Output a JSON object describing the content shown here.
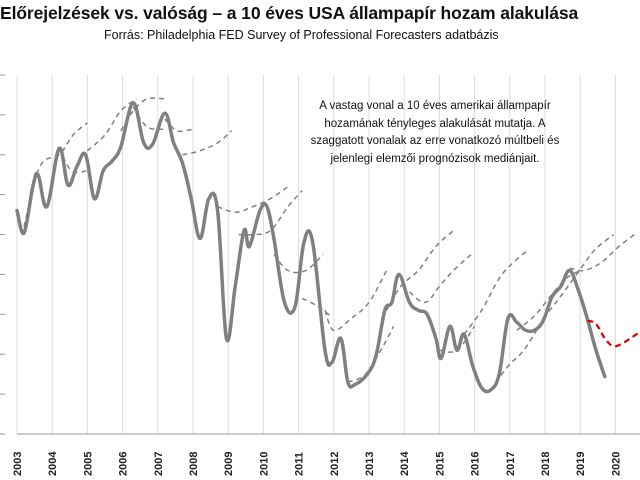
{
  "chart_data": {
    "type": "line",
    "title": "Előrejelzések vs. valóság – a 10 éves USA állampapír hozam alakulása",
    "subtitle": "Forrás: Philadelphia FED Survey of Professional Forecasters adatbázis",
    "annotation": "A vastag vonal a 10 éves amerikai állampapír hozamának tényleges alakulását mutatja. A szaggatott vonalak az erre vonatkozó múltbeli és jelenlegi elemzői prognózisok mediánjait.",
    "xlabel": "",
    "ylabel": "",
    "xlim": [
      2003,
      2020.7
    ],
    "ylim": [
      1.0,
      5.5
    ],
    "y_ticks": [
      1.0,
      1.5,
      2.0,
      2.5,
      3.0,
      3.5,
      4.0,
      4.5,
      5.0,
      5.5
    ],
    "x_ticks": [
      "2003",
      "2004",
      "2005",
      "2006",
      "2007",
      "2008",
      "2009",
      "2010",
      "2011",
      "2012",
      "2013",
      "2014",
      "2015",
      "2016",
      "2017",
      "2018",
      "2019",
      "2020"
    ],
    "grid": "vertical",
    "series": [
      {
        "kind": "actual",
        "color": "#808080",
        "style": "solid-thick",
        "points": [
          [
            2003.0,
            3.8
          ],
          [
            2003.2,
            3.52
          ],
          [
            2003.45,
            4.1
          ],
          [
            2003.6,
            4.25
          ],
          [
            2003.85,
            3.85
          ],
          [
            2004.2,
            4.58
          ],
          [
            2004.45,
            4.12
          ],
          [
            2004.7,
            4.35
          ],
          [
            2004.95,
            4.5
          ],
          [
            2005.2,
            3.95
          ],
          [
            2005.45,
            4.3
          ],
          [
            2005.7,
            4.42
          ],
          [
            2005.95,
            4.6
          ],
          [
            2006.3,
            5.15
          ],
          [
            2006.6,
            4.65
          ],
          [
            2006.85,
            4.63
          ],
          [
            2007.2,
            5.02
          ],
          [
            2007.45,
            4.65
          ],
          [
            2007.7,
            4.4
          ],
          [
            2007.95,
            3.95
          ],
          [
            2008.2,
            3.45
          ],
          [
            2008.45,
            3.95
          ],
          [
            2008.7,
            3.8
          ],
          [
            2008.95,
            2.2
          ],
          [
            2009.2,
            2.85
          ],
          [
            2009.45,
            3.55
          ],
          [
            2009.6,
            3.35
          ],
          [
            2009.9,
            3.8
          ],
          [
            2010.1,
            3.85
          ],
          [
            2010.3,
            3.45
          ],
          [
            2010.6,
            2.65
          ],
          [
            2010.9,
            2.6
          ],
          [
            2011.15,
            3.4
          ],
          [
            2011.4,
            3.4
          ],
          [
            2011.75,
            2.05
          ],
          [
            2011.95,
            1.9
          ],
          [
            2012.2,
            2.2
          ],
          [
            2012.4,
            1.65
          ],
          [
            2012.6,
            1.62
          ],
          [
            2012.95,
            1.75
          ],
          [
            2013.2,
            1.98
          ],
          [
            2013.45,
            2.55
          ],
          [
            2013.65,
            2.65
          ],
          [
            2013.85,
            3.0
          ],
          [
            2014.15,
            2.65
          ],
          [
            2014.4,
            2.55
          ],
          [
            2014.65,
            2.5
          ],
          [
            2014.9,
            2.2
          ],
          [
            2015.05,
            1.95
          ],
          [
            2015.3,
            2.35
          ],
          [
            2015.5,
            2.05
          ],
          [
            2015.7,
            2.25
          ],
          [
            2015.95,
            1.85
          ],
          [
            2016.2,
            1.58
          ],
          [
            2016.45,
            1.55
          ],
          [
            2016.7,
            1.75
          ],
          [
            2016.95,
            2.45
          ],
          [
            2017.2,
            2.4
          ],
          [
            2017.45,
            2.3
          ],
          [
            2017.7,
            2.3
          ],
          [
            2017.95,
            2.42
          ],
          [
            2018.2,
            2.72
          ],
          [
            2018.45,
            2.85
          ],
          [
            2018.7,
            3.05
          ],
          [
            2018.95,
            2.8
          ],
          [
            2019.2,
            2.45
          ],
          [
            2019.45,
            2.05
          ],
          [
            2019.7,
            1.72
          ]
        ]
      },
      {
        "kind": "forecast",
        "color": "#808080",
        "style": "dashed",
        "segments": [
          [
            [
              2003.2,
              3.6
            ],
            [
              2003.65,
              4.35
            ],
            [
              2004.2,
              4.5
            ],
            [
              2004.6,
              4.75
            ],
            [
              2005.0,
              4.9
            ]
          ],
          [
            [
              2004.2,
              4.58
            ],
            [
              2004.55,
              4.3
            ],
            [
              2005.0,
              4.3
            ]
          ],
          [
            [
              2005.0,
              4.55
            ],
            [
              2005.5,
              4.75
            ],
            [
              2005.95,
              5.05
            ],
            [
              2006.4,
              5.2
            ]
          ],
          [
            [
              2005.95,
              4.8
            ],
            [
              2006.3,
              5.05
            ],
            [
              2006.7,
              5.2
            ],
            [
              2007.2,
              5.2
            ]
          ],
          [
            [
              2006.3,
              5.1
            ],
            [
              2006.7,
              4.85
            ],
            [
              2007.2,
              4.82
            ]
          ],
          [
            [
              2007.2,
              4.95
            ],
            [
              2007.55,
              4.8
            ],
            [
              2008.0,
              4.82
            ]
          ],
          [
            [
              2007.7,
              4.5
            ],
            [
              2008.2,
              4.55
            ],
            [
              2008.7,
              4.65
            ],
            [
              2009.1,
              4.8
            ]
          ],
          [
            [
              2008.7,
              3.85
            ],
            [
              2009.2,
              3.78
            ],
            [
              2009.7,
              3.85
            ],
            [
              2010.2,
              3.95
            ],
            [
              2010.7,
              4.1
            ]
          ],
          [
            [
              2009.3,
              3.5
            ],
            [
              2009.7,
              3.5
            ],
            [
              2010.2,
              3.55
            ],
            [
              2010.7,
              3.85
            ],
            [
              2011.1,
              4.05
            ]
          ],
          [
            [
              2010.3,
              3.25
            ],
            [
              2010.7,
              3.05
            ],
            [
              2011.2,
              3.05
            ],
            [
              2011.7,
              3.25
            ]
          ],
          [
            [
              2011.1,
              2.7
            ],
            [
              2011.55,
              2.6
            ],
            [
              2011.9,
              2.48
            ]
          ],
          [
            [
              2011.75,
              2.55
            ],
            [
              2012.0,
              2.3
            ],
            [
              2012.5,
              2.45
            ],
            [
              2013.0,
              2.65
            ],
            [
              2013.5,
              3.05
            ]
          ],
          [
            [
              2012.4,
              1.65
            ],
            [
              2012.9,
              1.75
            ],
            [
              2013.4,
              2.1
            ],
            [
              2013.7,
              2.35
            ]
          ],
          [
            [
              2013.5,
              2.55
            ],
            [
              2013.9,
              2.85
            ],
            [
              2014.4,
              3.05
            ],
            [
              2014.9,
              3.35
            ],
            [
              2015.4,
              3.55
            ]
          ],
          [
            [
              2014.15,
              2.78
            ],
            [
              2014.6,
              2.65
            ],
            [
              2015.0,
              2.85
            ],
            [
              2015.4,
              3.05
            ],
            [
              2015.9,
              3.25
            ]
          ],
          [
            [
              2015.0,
              2.05
            ],
            [
              2015.5,
              2.05
            ],
            [
              2016.0,
              2.35
            ]
          ],
          [
            [
              2015.7,
              2.25
            ],
            [
              2016.2,
              2.55
            ],
            [
              2016.7,
              2.95
            ],
            [
              2017.1,
              3.15
            ],
            [
              2017.5,
              3.3
            ]
          ],
          [
            [
              2016.45,
              1.55
            ],
            [
              2016.95,
              1.85
            ],
            [
              2017.4,
              2.05
            ],
            [
              2017.9,
              2.4
            ]
          ],
          [
            [
              2017.2,
              2.3
            ],
            [
              2017.7,
              2.48
            ],
            [
              2018.2,
              2.75
            ],
            [
              2018.6,
              2.95
            ],
            [
              2019.0,
              3.05
            ]
          ],
          [
            [
              2017.95,
              2.45
            ],
            [
              2018.4,
              2.7
            ],
            [
              2018.9,
              3.0
            ],
            [
              2019.4,
              3.3
            ],
            [
              2019.95,
              3.5
            ]
          ],
          [
            [
              2018.7,
              3.08
            ],
            [
              2019.1,
              3.05
            ],
            [
              2019.6,
              3.15
            ],
            [
              2020.1,
              3.35
            ],
            [
              2020.6,
              3.52
            ]
          ]
        ]
      },
      {
        "kind": "current-forecast",
        "color": "#e00000",
        "style": "dashed",
        "points": [
          [
            2019.2,
            2.42
          ],
          [
            2019.45,
            2.38
          ],
          [
            2019.7,
            2.2
          ],
          [
            2019.95,
            2.1
          ],
          [
            2020.25,
            2.15
          ],
          [
            2020.5,
            2.22
          ],
          [
            2020.7,
            2.28
          ]
        ]
      }
    ]
  }
}
